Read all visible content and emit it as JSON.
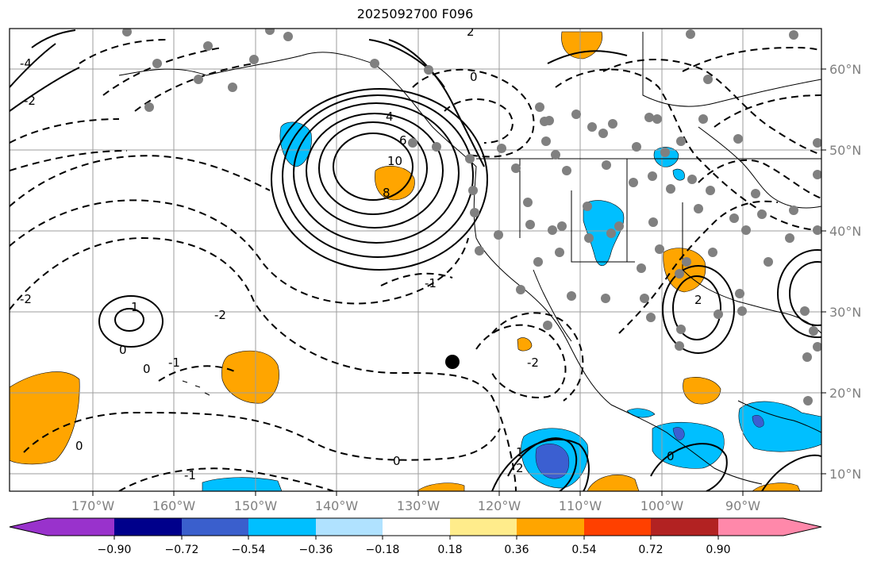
{
  "title": "2025092700 F096",
  "map": {
    "lon_labels": [
      "170°W",
      "160°W",
      "150°W",
      "140°W",
      "130°W",
      "120°W",
      "110°W",
      "100°W",
      "90°W"
    ],
    "lat_labels": [
      "60°N",
      "50°N",
      "40°N",
      "30°N",
      "20°N",
      "10°N"
    ],
    "contour_labels": [
      "10",
      "8",
      "6",
      "4",
      "2",
      "0",
      "-1",
      "-2",
      "0",
      "1",
      "-1",
      "0",
      "-2",
      "-4",
      "0",
      "2",
      "-2",
      "2",
      "0",
      "-1",
      "1",
      "-2",
      "0"
    ],
    "station_marker": "black-dot",
    "colors": {
      "orange": "#ffa500",
      "cyan": "#00bfff",
      "blue": "#3b5fd1",
      "gridline": "#9e9e9e",
      "land_outline": "#000000"
    }
  },
  "colorbar": {
    "ticks": [
      "−0.90",
      "−0.72",
      "−0.54",
      "−0.36",
      "−0.18",
      "0.18",
      "0.36",
      "0.54",
      "0.72",
      "0.90"
    ],
    "colors": [
      "#9932cc",
      "#00008b",
      "#3a5fcd",
      "#00bfff",
      "#b0e2ff",
      "#ffffff",
      "#ffec8b",
      "#ffa500",
      "#ff4000",
      "#b22222",
      "#ff88aa"
    ]
  }
}
